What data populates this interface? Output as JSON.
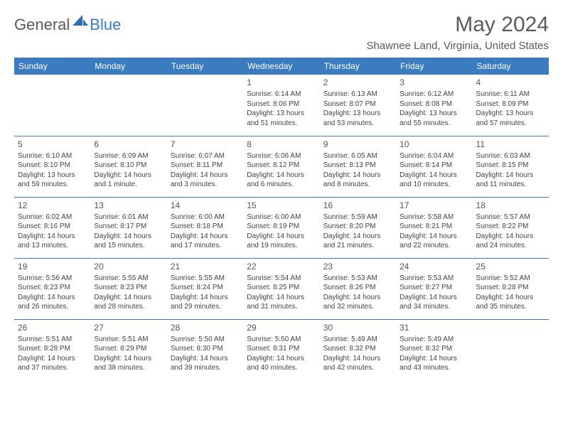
{
  "logo": {
    "part1": "General",
    "part2": "Blue"
  },
  "title": "May 2024",
  "subtitle": "Shawnee Land, Virginia, United States",
  "colors": {
    "header_bg": "#3b7bbf",
    "header_text": "#ffffff",
    "border": "#3b7bbf",
    "text": "#444444",
    "logo_gray": "#5a5a5a",
    "logo_blue": "#3b7bbf"
  },
  "weekdays": [
    "Sunday",
    "Monday",
    "Tuesday",
    "Wednesday",
    "Thursday",
    "Friday",
    "Saturday"
  ],
  "weeks": [
    [
      null,
      null,
      null,
      {
        "day": "1",
        "sunrise": "Sunrise: 6:14 AM",
        "sunset": "Sunset: 8:06 PM",
        "daylight": "Daylight: 13 hours and 51 minutes."
      },
      {
        "day": "2",
        "sunrise": "Sunrise: 6:13 AM",
        "sunset": "Sunset: 8:07 PM",
        "daylight": "Daylight: 13 hours and 53 minutes."
      },
      {
        "day": "3",
        "sunrise": "Sunrise: 6:12 AM",
        "sunset": "Sunset: 8:08 PM",
        "daylight": "Daylight: 13 hours and 55 minutes."
      },
      {
        "day": "4",
        "sunrise": "Sunrise: 6:11 AM",
        "sunset": "Sunset: 8:09 PM",
        "daylight": "Daylight: 13 hours and 57 minutes."
      }
    ],
    [
      {
        "day": "5",
        "sunrise": "Sunrise: 6:10 AM",
        "sunset": "Sunset: 8:10 PM",
        "daylight": "Daylight: 13 hours and 59 minutes."
      },
      {
        "day": "6",
        "sunrise": "Sunrise: 6:09 AM",
        "sunset": "Sunset: 8:10 PM",
        "daylight": "Daylight: 14 hours and 1 minute."
      },
      {
        "day": "7",
        "sunrise": "Sunrise: 6:07 AM",
        "sunset": "Sunset: 8:11 PM",
        "daylight": "Daylight: 14 hours and 3 minutes."
      },
      {
        "day": "8",
        "sunrise": "Sunrise: 6:06 AM",
        "sunset": "Sunset: 8:12 PM",
        "daylight": "Daylight: 14 hours and 6 minutes."
      },
      {
        "day": "9",
        "sunrise": "Sunrise: 6:05 AM",
        "sunset": "Sunset: 8:13 PM",
        "daylight": "Daylight: 14 hours and 8 minutes."
      },
      {
        "day": "10",
        "sunrise": "Sunrise: 6:04 AM",
        "sunset": "Sunset: 8:14 PM",
        "daylight": "Daylight: 14 hours and 10 minutes."
      },
      {
        "day": "11",
        "sunrise": "Sunrise: 6:03 AM",
        "sunset": "Sunset: 8:15 PM",
        "daylight": "Daylight: 14 hours and 11 minutes."
      }
    ],
    [
      {
        "day": "12",
        "sunrise": "Sunrise: 6:02 AM",
        "sunset": "Sunset: 8:16 PM",
        "daylight": "Daylight: 14 hours and 13 minutes."
      },
      {
        "day": "13",
        "sunrise": "Sunrise: 6:01 AM",
        "sunset": "Sunset: 8:17 PM",
        "daylight": "Daylight: 14 hours and 15 minutes."
      },
      {
        "day": "14",
        "sunrise": "Sunrise: 6:00 AM",
        "sunset": "Sunset: 8:18 PM",
        "daylight": "Daylight: 14 hours and 17 minutes."
      },
      {
        "day": "15",
        "sunrise": "Sunrise: 6:00 AM",
        "sunset": "Sunset: 8:19 PM",
        "daylight": "Daylight: 14 hours and 19 minutes."
      },
      {
        "day": "16",
        "sunrise": "Sunrise: 5:59 AM",
        "sunset": "Sunset: 8:20 PM",
        "daylight": "Daylight: 14 hours and 21 minutes."
      },
      {
        "day": "17",
        "sunrise": "Sunrise: 5:58 AM",
        "sunset": "Sunset: 8:21 PM",
        "daylight": "Daylight: 14 hours and 22 minutes."
      },
      {
        "day": "18",
        "sunrise": "Sunrise: 5:57 AM",
        "sunset": "Sunset: 8:22 PM",
        "daylight": "Daylight: 14 hours and 24 minutes."
      }
    ],
    [
      {
        "day": "19",
        "sunrise": "Sunrise: 5:56 AM",
        "sunset": "Sunset: 8:23 PM",
        "daylight": "Daylight: 14 hours and 26 minutes."
      },
      {
        "day": "20",
        "sunrise": "Sunrise: 5:55 AM",
        "sunset": "Sunset: 8:23 PM",
        "daylight": "Daylight: 14 hours and 28 minutes."
      },
      {
        "day": "21",
        "sunrise": "Sunrise: 5:55 AM",
        "sunset": "Sunset: 8:24 PM",
        "daylight": "Daylight: 14 hours and 29 minutes."
      },
      {
        "day": "22",
        "sunrise": "Sunrise: 5:54 AM",
        "sunset": "Sunset: 8:25 PM",
        "daylight": "Daylight: 14 hours and 31 minutes."
      },
      {
        "day": "23",
        "sunrise": "Sunrise: 5:53 AM",
        "sunset": "Sunset: 8:26 PM",
        "daylight": "Daylight: 14 hours and 32 minutes."
      },
      {
        "day": "24",
        "sunrise": "Sunrise: 5:53 AM",
        "sunset": "Sunset: 8:27 PM",
        "daylight": "Daylight: 14 hours and 34 minutes."
      },
      {
        "day": "25",
        "sunrise": "Sunrise: 5:52 AM",
        "sunset": "Sunset: 8:28 PM",
        "daylight": "Daylight: 14 hours and 35 minutes."
      }
    ],
    [
      {
        "day": "26",
        "sunrise": "Sunrise: 5:51 AM",
        "sunset": "Sunset: 8:28 PM",
        "daylight": "Daylight: 14 hours and 37 minutes."
      },
      {
        "day": "27",
        "sunrise": "Sunrise: 5:51 AM",
        "sunset": "Sunset: 8:29 PM",
        "daylight": "Daylight: 14 hours and 38 minutes."
      },
      {
        "day": "28",
        "sunrise": "Sunrise: 5:50 AM",
        "sunset": "Sunset: 8:30 PM",
        "daylight": "Daylight: 14 hours and 39 minutes."
      },
      {
        "day": "29",
        "sunrise": "Sunrise: 5:50 AM",
        "sunset": "Sunset: 8:31 PM",
        "daylight": "Daylight: 14 hours and 40 minutes."
      },
      {
        "day": "30",
        "sunrise": "Sunrise: 5:49 AM",
        "sunset": "Sunset: 8:32 PM",
        "daylight": "Daylight: 14 hours and 42 minutes."
      },
      {
        "day": "31",
        "sunrise": "Sunrise: 5:49 AM",
        "sunset": "Sunset: 8:32 PM",
        "daylight": "Daylight: 14 hours and 43 minutes."
      },
      null
    ]
  ]
}
